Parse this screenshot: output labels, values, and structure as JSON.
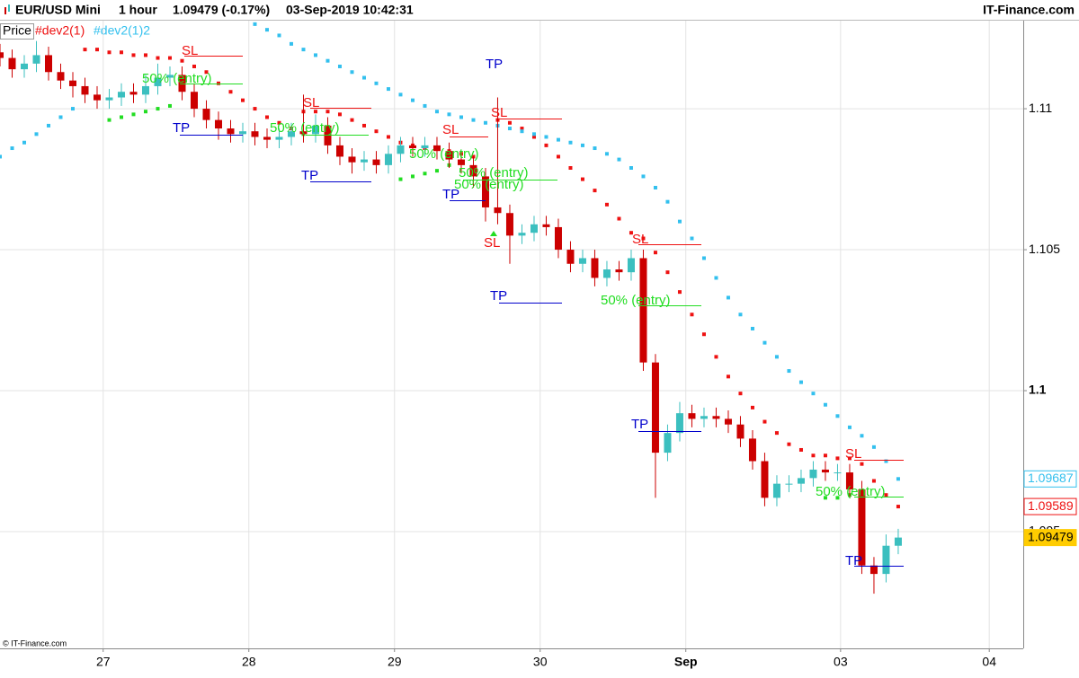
{
  "header": {
    "symbol": "EUR/USD Mini",
    "timeframe": "1 hour",
    "quote": "1.09479 (-0.17%)",
    "datetime": "03-Sep-2019 10:42:31",
    "brand": "IT-Finance.com",
    "footer": "© IT-Finance.com"
  },
  "chart_data": {
    "type": "candlestick",
    "price_label": "Price",
    "up_color": "#3bbfbf",
    "down_color": "#cc0000",
    "x": [
      0,
      2,
      4,
      6,
      8,
      10,
      12,
      14,
      16,
      18,
      20,
      22,
      24,
      26,
      28,
      30,
      32,
      34,
      36,
      38,
      40,
      42,
      44,
      46,
      48,
      50,
      52,
      54,
      56,
      58,
      60,
      62,
      64,
      66,
      68,
      70,
      72,
      74,
      76,
      78,
      80,
      82,
      84,
      86,
      88,
      90,
      92,
      94,
      96,
      98,
      100,
      102,
      104,
      106,
      108,
      110,
      112,
      114,
      116,
      118,
      120,
      122,
      124,
      126,
      128,
      130,
      132,
      134,
      136,
      138,
      140,
      142,
      144,
      146,
      148
    ],
    "open": [
      1.112,
      1.1118,
      1.1114,
      1.1116,
      1.1119,
      1.1113,
      1.111,
      1.1108,
      1.1105,
      1.1103,
      1.1104,
      1.1106,
      1.1105,
      1.1108,
      1.1111,
      1.1112,
      1.1106,
      1.11,
      1.1096,
      1.1093,
      1.1091,
      1.1092,
      1.109,
      1.1089,
      1.109,
      1.1092,
      1.1091,
      1.1094,
      1.1087,
      1.1083,
      1.1081,
      1.1082,
      1.108,
      1.1084,
      1.1087,
      1.1086,
      1.1087,
      1.1085,
      1.1082,
      1.108,
      1.1076,
      1.1065,
      1.1063,
      1.1055,
      1.1056,
      1.1059,
      1.1058,
      1.105,
      1.1045,
      1.1047,
      1.104,
      1.1043,
      1.1042,
      1.1047,
      1.101,
      1.0978,
      1.0985,
      1.0992,
      1.099,
      1.0991,
      1.099,
      1.0988,
      1.0983,
      1.0975,
      1.0962,
      1.0967,
      1.0967,
      1.0969,
      1.0972,
      1.0971,
      1.0971,
      1.0965,
      1.0938,
      1.0935,
      1.0945
    ],
    "high": [
      1.1123,
      1.1121,
      1.1119,
      1.1124,
      1.1122,
      1.1116,
      1.1113,
      1.1111,
      1.1108,
      1.1107,
      1.1109,
      1.1109,
      1.1112,
      1.1116,
      1.1115,
      1.1115,
      1.1109,
      1.1103,
      1.1099,
      1.1096,
      1.1095,
      1.1095,
      1.1093,
      1.1093,
      1.1095,
      1.1105,
      1.1098,
      1.1097,
      1.109,
      1.1086,
      1.1085,
      1.1085,
      1.1087,
      1.109,
      1.109,
      1.109,
      1.109,
      1.1088,
      1.1085,
      1.1083,
      1.1079,
      1.1104,
      1.1066,
      1.1059,
      1.1062,
      1.1062,
      1.1061,
      1.1053,
      1.105,
      1.105,
      1.1046,
      1.1046,
      1.105,
      1.105,
      1.1013,
      1.0988,
      1.0996,
      1.0995,
      1.0994,
      1.0994,
      1.0993,
      1.0991,
      1.0986,
      1.0978,
      1.097,
      1.097,
      1.0972,
      1.0975,
      1.0975,
      1.0974,
      1.0974,
      1.0968,
      1.0941,
      1.0949,
      1.0951
    ],
    "low": [
      1.1115,
      1.1111,
      1.1111,
      1.1113,
      1.111,
      1.1107,
      1.1104,
      1.1102,
      1.11,
      1.11,
      1.1101,
      1.1102,
      1.1102,
      1.1105,
      1.1108,
      1.1103,
      1.1097,
      1.1093,
      1.1089,
      1.1088,
      1.1088,
      1.1087,
      1.1086,
      1.1086,
      1.1087,
      1.1088,
      1.1088,
      1.1084,
      1.108,
      1.1077,
      1.1078,
      1.1077,
      1.1077,
      1.1081,
      1.1083,
      1.1083,
      1.1082,
      1.1079,
      1.1077,
      1.1072,
      1.106,
      1.1059,
      1.1045,
      1.1052,
      1.1053,
      1.1055,
      1.1047,
      1.1042,
      1.1042,
      1.1037,
      1.1037,
      1.1039,
      1.1039,
      1.1007,
      1.0962,
      1.0975,
      1.0982,
      1.0987,
      1.0987,
      1.0987,
      1.0985,
      1.098,
      1.0972,
      1.0959,
      1.0959,
      1.0964,
      1.0964,
      1.0966,
      1.0968,
      1.0968,
      1.0962,
      1.0935,
      1.0928,
      1.0932,
      1.0942
    ],
    "close": [
      1.1118,
      1.1114,
      1.1116,
      1.1119,
      1.1113,
      1.111,
      1.1108,
      1.1105,
      1.1103,
      1.1104,
      1.1106,
      1.1105,
      1.1108,
      1.1111,
      1.1112,
      1.1106,
      1.11,
      1.1096,
      1.1093,
      1.1091,
      1.1092,
      1.109,
      1.1089,
      1.109,
      1.1092,
      1.1091,
      1.1094,
      1.1087,
      1.1083,
      1.1081,
      1.1082,
      1.108,
      1.1084,
      1.1087,
      1.1086,
      1.1087,
      1.1085,
      1.1082,
      1.108,
      1.1076,
      1.1065,
      1.1063,
      1.1055,
      1.1056,
      1.1059,
      1.1058,
      1.105,
      1.1045,
      1.1047,
      1.104,
      1.1043,
      1.1042,
      1.1047,
      1.101,
      1.0978,
      1.0985,
      1.0992,
      1.099,
      1.0991,
      1.099,
      1.0988,
      1.0983,
      1.0975,
      1.0962,
      1.0967,
      1.0967,
      1.0969,
      1.0972,
      1.0971,
      1.0971,
      1.0965,
      1.0938,
      1.0935,
      1.0945,
      1.09479
    ],
    "series": [
      {
        "name": "#dev2(1)",
        "color": "#ee1111",
        "values": [
          null,
          null,
          null,
          null,
          null,
          null,
          null,
          1.1121,
          1.1121,
          1.112,
          1.112,
          1.1119,
          1.1119,
          1.1118,
          1.1118,
          1.1117,
          1.1115,
          1.1113,
          1.1109,
          1.1106,
          1.1103,
          1.11,
          1.1097,
          1.1095,
          1.1093,
          1.1099,
          1.1099,
          1.1099,
          1.1098,
          1.1096,
          1.1094,
          1.1092,
          1.109,
          1.1088,
          1.1087,
          1.1086,
          1.1086,
          1.1085,
          1.1084,
          1.1083,
          null,
          1.1096,
          1.1095,
          1.1093,
          1.109,
          1.1087,
          1.1083,
          1.1079,
          1.1075,
          1.1071,
          1.1066,
          1.1061,
          1.1056,
          1.1054,
          1.1049,
          1.1042,
          1.1035,
          1.1027,
          1.102,
          1.1012,
          1.1005,
          1.0999,
          1.0994,
          1.0989,
          1.0985,
          1.0981,
          1.0979,
          1.0977,
          1.0977,
          1.0976,
          1.0976,
          1.0974,
          1.0968,
          1.0963,
          1.09589
        ]
      },
      {
        "name": "#dev2(1)2",
        "color": "#33c0ee",
        "values": [
          1.1083,
          1.1086,
          1.1088,
          1.1091,
          1.1094,
          1.1097,
          1.11,
          null,
          null,
          null,
          null,
          null,
          null,
          null,
          null,
          null,
          null,
          null,
          null,
          null,
          null,
          1.113,
          1.1128,
          1.1126,
          1.1123,
          1.1121,
          1.1119,
          1.1117,
          1.1115,
          1.1113,
          1.1111,
          1.1109,
          1.1107,
          1.1105,
          1.1103,
          1.1101,
          1.1099,
          1.1098,
          1.1097,
          1.1096,
          1.1095,
          1.1094,
          1.1093,
          1.1092,
          1.1091,
          1.109,
          1.1089,
          1.1088,
          1.1087,
          1.1086,
          1.1084,
          1.1082,
          1.1079,
          1.1076,
          1.1072,
          1.1067,
          1.106,
          1.1054,
          1.1047,
          1.104,
          1.1033,
          1.1027,
          1.1022,
          1.1017,
          1.1012,
          1.1007,
          1.1003,
          1.0999,
          1.0995,
          1.0991,
          1.0987,
          1.0984,
          1.098,
          1.0975,
          1.09687
        ]
      },
      {
        "color": "#22dd22",
        "values": [
          null,
          null,
          null,
          null,
          null,
          null,
          null,
          null,
          null,
          1.1096,
          1.1097,
          1.1098,
          1.1099,
          1.11,
          1.1101,
          null,
          null,
          null,
          null,
          null,
          null,
          null,
          null,
          null,
          null,
          1.1091,
          1.1093,
          null,
          null,
          null,
          null,
          null,
          null,
          1.1075,
          1.1076,
          1.1077,
          1.1078,
          1.108,
          null,
          null,
          null,
          null,
          null,
          null,
          null,
          null,
          null,
          null,
          null,
          null,
          null,
          null,
          null,
          null,
          null,
          null,
          null,
          null,
          null,
          null,
          null,
          null,
          null,
          null,
          null,
          null,
          null,
          null,
          1.0962,
          1.0962,
          1.0963,
          null,
          null,
          null,
          null
        ]
      }
    ],
    "current": {
      "value": 1.09479,
      "color": "#ffcc00"
    },
    "ylim": [
      1.09086,
      1.11306
    ],
    "yticks": [
      1.095,
      1.1,
      1.105,
      1.11
    ],
    "xlim": [
      0,
      168.6
    ],
    "xticks": [
      {
        "value": 17,
        "label": "27"
      },
      {
        "value": 41,
        "label": "28"
      },
      {
        "value": 65,
        "label": "29"
      },
      {
        "value": 89,
        "label": "30"
      },
      {
        "value": 113,
        "label": "Sep"
      },
      {
        "value": 138.5,
        "label": "03"
      },
      {
        "value": 163,
        "label": "04"
      }
    ],
    "grid": true,
    "annotations": [
      {
        "text": "SL",
        "color": "#ee1111"
      },
      {
        "text": "50% (entry)",
        "color": "#22dd22"
      },
      {
        "text": "TP",
        "color": "#0000cc"
      },
      {
        "text": "SL",
        "color": "#ee1111"
      },
      {
        "text": "50% (entry)",
        "color": "#22dd22"
      },
      {
        "text": "TP",
        "color": "#0000cc"
      },
      {
        "text": "SL",
        "color": "#ee1111"
      },
      {
        "text": "50% (entry)",
        "color": "#22dd22"
      },
      {
        "text": "50% (entry)",
        "color": "#22dd22"
      },
      {
        "text": "50% (entry)",
        "color": "#22dd22"
      },
      {
        "text": "TP",
        "color": "#0000cc"
      },
      {
        "text": "SL",
        "color": "#ee1111"
      },
      {
        "text": "TP",
        "color": "#0000cc"
      },
      {
        "text": "SL",
        "color": "#ee1111"
      },
      {
        "text": "TP",
        "color": "#0000cc"
      },
      {
        "text": "SL",
        "color": "#ee1111"
      },
      {
        "text": "50% (entry)",
        "color": "#22dd22"
      },
      {
        "text": "TP",
        "color": "#0000cc"
      },
      {
        "text": "SL",
        "color": "#ee1111"
      },
      {
        "text": "50% (entry)",
        "color": "#22dd22"
      },
      {
        "text": "TP",
        "color": "#0000cc"
      }
    ]
  }
}
